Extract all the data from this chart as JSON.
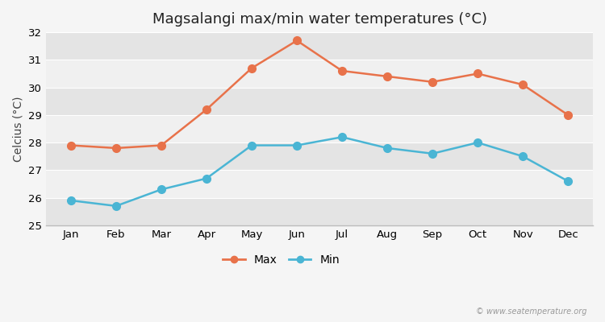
{
  "title": "Magsalangi max/min water temperatures (°C)",
  "ylabel": "Celcius (°C)",
  "months": [
    "Jan",
    "Feb",
    "Mar",
    "Apr",
    "May",
    "Jun",
    "Jul",
    "Aug",
    "Sep",
    "Oct",
    "Nov",
    "Dec"
  ],
  "max_temps": [
    27.9,
    27.8,
    27.9,
    29.2,
    30.7,
    31.7,
    30.6,
    30.4,
    30.2,
    30.5,
    30.1,
    29.0
  ],
  "min_temps": [
    25.9,
    25.7,
    26.3,
    26.7,
    27.9,
    27.9,
    28.2,
    27.8,
    27.6,
    28.0,
    27.5,
    26.6
  ],
  "max_color": "#e8724a",
  "min_color": "#4ab5d4",
  "fig_bg_color": "#f5f5f5",
  "band_light": "#f0f0f0",
  "band_dark": "#e4e4e4",
  "grid_color": "#ffffff",
  "ylim": [
    25,
    32
  ],
  "yticks": [
    25,
    26,
    27,
    28,
    29,
    30,
    31,
    32
  ],
  "watermark": "© www.seatemperature.org",
  "title_fontsize": 13,
  "axis_label_fontsize": 10,
  "tick_fontsize": 9.5,
  "legend_fontsize": 10,
  "markersize": 7,
  "linewidth": 1.8
}
